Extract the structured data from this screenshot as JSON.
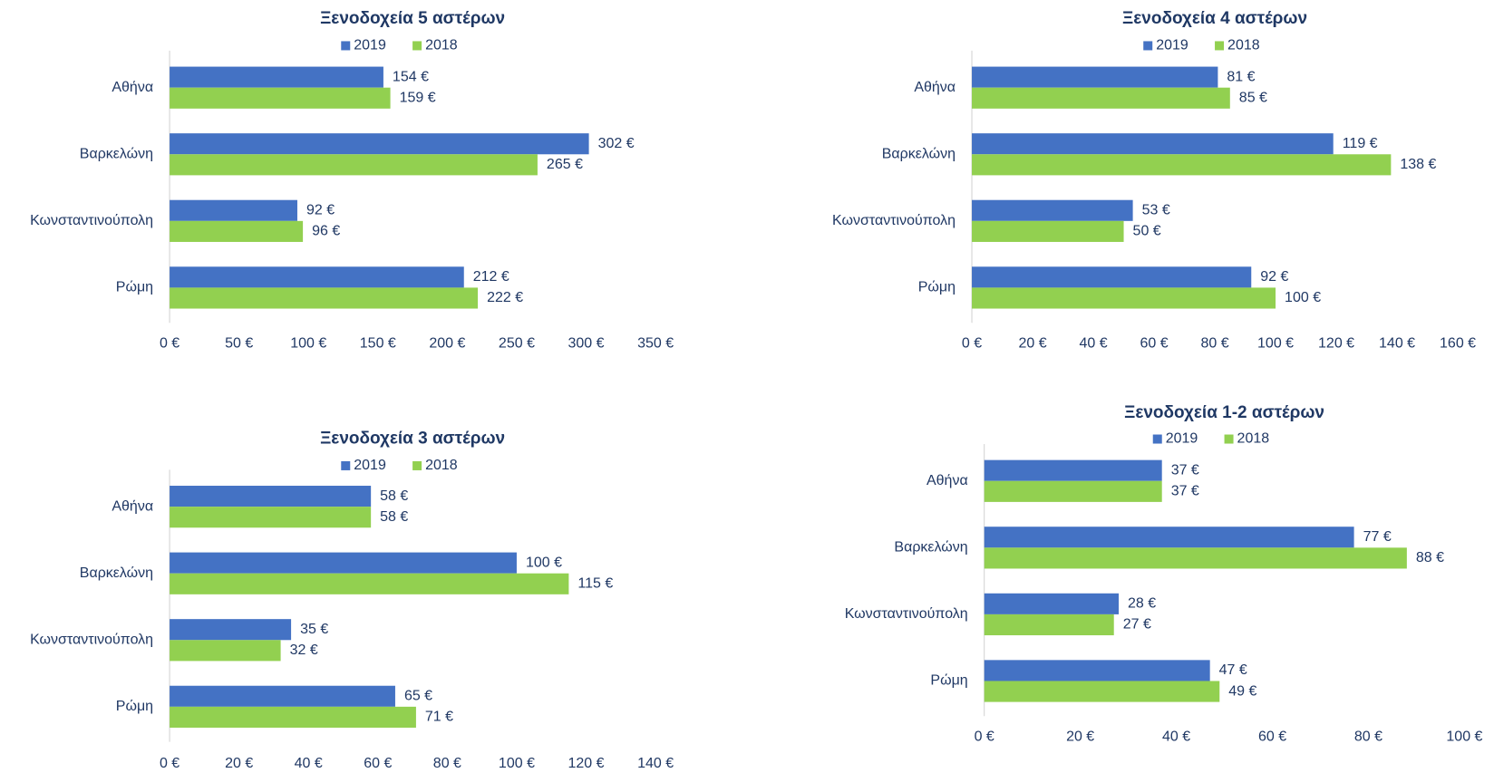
{
  "chart_data": [
    {
      "type": "bar",
      "orientation": "horizontal",
      "title": "Ξενοδοχεία 5 αστέρων",
      "categories": [
        "Αθήνα",
        "Βαρκελώνη",
        "Κωνσταντινούπολη",
        "Ρώμη"
      ],
      "series": [
        {
          "name": "2019",
          "color": "#4472c4",
          "values": [
            154,
            302,
            92,
            212
          ],
          "value_labels": [
            "154 €",
            "302 €",
            "92 €",
            "212 €"
          ]
        },
        {
          "name": "2018",
          "color": "#92d050",
          "values": [
            159,
            265,
            96,
            222
          ],
          "value_labels": [
            "159 €",
            "265 €",
            "96 €",
            "222 €"
          ]
        }
      ],
      "xlim": [
        0,
        350
      ],
      "xticks": [
        {
          "value": 0,
          "label": "0 €"
        },
        {
          "value": 50,
          "label": "50 €"
        },
        {
          "value": 100,
          "label": "100 €"
        },
        {
          "value": 150,
          "label": "150 €"
        },
        {
          "value": 200,
          "label": "200 €"
        },
        {
          "value": 250,
          "label": "250 €"
        },
        {
          "value": 300,
          "label": "300 €"
        },
        {
          "value": 350,
          "label": "350 €"
        }
      ],
      "legend": "top"
    },
    {
      "type": "bar",
      "orientation": "horizontal",
      "title": "Ξενοδοχεία 4 αστέρων",
      "categories": [
        "Αθήνα",
        "Βαρκελώνη",
        "Κωνσταντινούπολη",
        "Ρώμη"
      ],
      "series": [
        {
          "name": "2019",
          "color": "#4472c4",
          "values": [
            81,
            119,
            53,
            92
          ],
          "value_labels": [
            "81 €",
            "119 €",
            "53 €",
            "92 €"
          ]
        },
        {
          "name": "2018",
          "color": "#92d050",
          "values": [
            85,
            138,
            50,
            100
          ],
          "value_labels": [
            "85 €",
            "138 €",
            "50 €",
            "100 €"
          ]
        }
      ],
      "xlim": [
        0,
        160
      ],
      "xticks": [
        {
          "value": 0,
          "label": "0 €"
        },
        {
          "value": 20,
          "label": "20 €"
        },
        {
          "value": 40,
          "label": "40 €"
        },
        {
          "value": 60,
          "label": "60 €"
        },
        {
          "value": 80,
          "label": "80 €"
        },
        {
          "value": 100,
          "label": "100 €"
        },
        {
          "value": 120,
          "label": "120 €"
        },
        {
          "value": 140,
          "label": "140 €"
        },
        {
          "value": 160,
          "label": "160 €"
        }
      ],
      "legend": "top"
    },
    {
      "type": "bar",
      "orientation": "horizontal",
      "title": "Ξενοδοχεία 3 αστέρων",
      "categories": [
        "Αθήνα",
        "Βαρκελώνη",
        "Κωνσταντινούπολη",
        "Ρώμη"
      ],
      "series": [
        {
          "name": "2019",
          "color": "#4472c4",
          "values": [
            58,
            100,
            35,
            65
          ],
          "value_labels": [
            "58 €",
            "100 €",
            "35 €",
            "65 €"
          ]
        },
        {
          "name": "2018",
          "color": "#92d050",
          "values": [
            58,
            115,
            32,
            71
          ],
          "value_labels": [
            "58 €",
            "115 €",
            "32 €",
            "71 €"
          ]
        }
      ],
      "xlim": [
        0,
        140
      ],
      "xticks": [
        {
          "value": 0,
          "label": "0 €"
        },
        {
          "value": 20,
          "label": "20 €"
        },
        {
          "value": 40,
          "label": "40 €"
        },
        {
          "value": 60,
          "label": "60 €"
        },
        {
          "value": 80,
          "label": "80 €"
        },
        {
          "value": 100,
          "label": "100 €"
        },
        {
          "value": 120,
          "label": "120 €"
        },
        {
          "value": 140,
          "label": "140 €"
        }
      ],
      "legend": "top"
    },
    {
      "type": "bar",
      "orientation": "horizontal",
      "title": "Ξενοδοχεία 1-2 αστέρων",
      "categories": [
        "Αθήνα",
        "Βαρκελώνη",
        "Κωνσταντινούπολη",
        "Ρώμη"
      ],
      "series": [
        {
          "name": "2019",
          "color": "#4472c4",
          "values": [
            37,
            77,
            28,
            47
          ],
          "value_labels": [
            "37 €",
            "77 €",
            "28 €",
            "47 €"
          ]
        },
        {
          "name": "2018",
          "color": "#92d050",
          "values": [
            37,
            88,
            27,
            49
          ],
          "value_labels": [
            "37 €",
            "88 €",
            "27 €",
            "49 €"
          ]
        }
      ],
      "xlim": [
        0,
        100
      ],
      "xticks": [
        {
          "value": 0,
          "label": "0 €"
        },
        {
          "value": 20,
          "label": "20 €"
        },
        {
          "value": 40,
          "label": "40 €"
        },
        {
          "value": 60,
          "label": "60 €"
        },
        {
          "value": 80,
          "label": "80 €"
        },
        {
          "value": 100,
          "label": "100 €"
        }
      ],
      "legend": "top"
    }
  ]
}
